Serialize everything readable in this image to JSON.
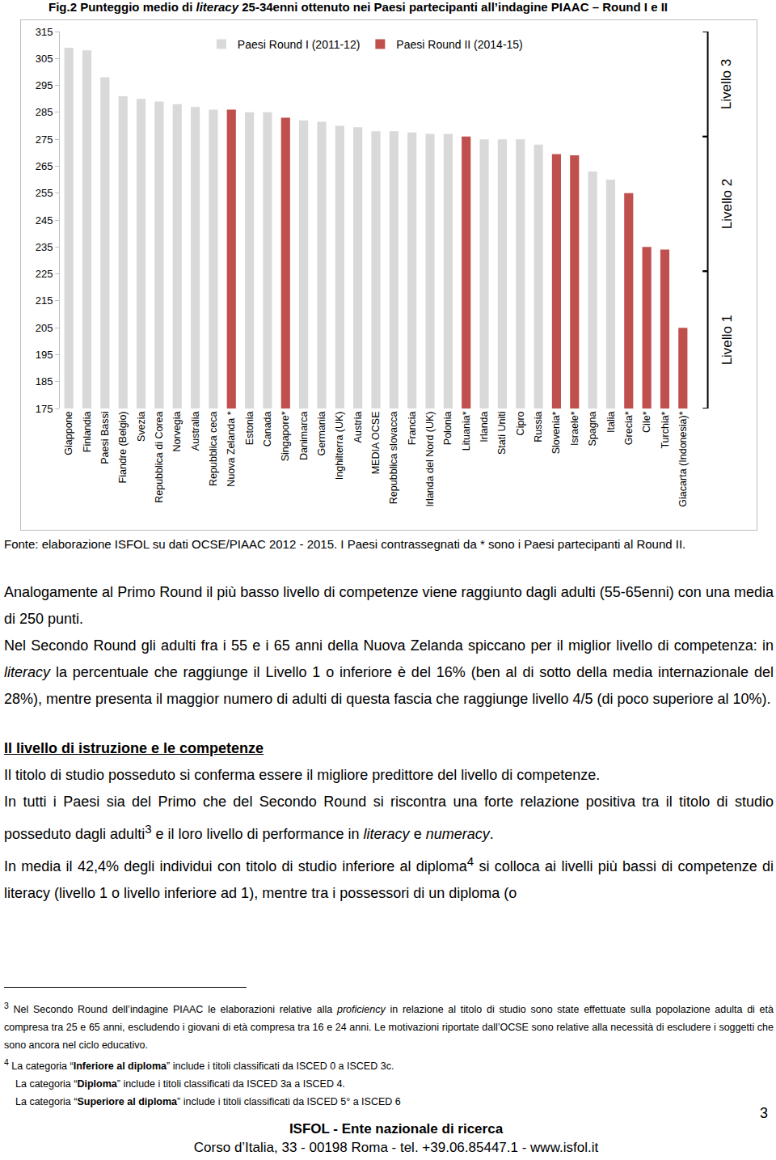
{
  "title": [
    {
      "text": "Fig.2 Punteggio medio di "
    },
    {
      "text": "literacy",
      "style": "italic"
    },
    {
      "text": " 25-34enni ottenuto nei Paesi partecipanti all’indagine PIAAC – Round I e II"
    }
  ],
  "chart_data": {
    "type": "bar",
    "categories": [
      "Giappone",
      "Finlandia",
      "Paesi Bassi",
      "Fiandre (Belgio)",
      "Svezia",
      "Repubblica di Corea",
      "Norvegia",
      "Australia",
      "Repubblica ceca",
      "Nuova Zelanda *",
      "Estonia",
      "Canada",
      "Singapore*",
      "Danimarca",
      "Germania",
      "Inghilterra (UK)",
      "Austria",
      "MEDIA OCSE",
      "Repubblica slovacca",
      "Francia",
      "Irlanda del Nord (UK)",
      "Polonia",
      "Lituania*",
      "Irlanda",
      "Stati Uniti",
      "Cipro",
      "Russia",
      "Slovenia*",
      "Israele*",
      "Spagna",
      "Italia",
      "Grecia*",
      "Cile*",
      "Turchia*",
      "Giacarta (Indonesia)*"
    ],
    "series": [
      {
        "name": "Paesi Round I (2011-12)",
        "color": "#d9d9d9",
        "values": [
          309,
          308,
          298,
          291,
          290,
          289,
          288,
          287,
          286,
          null,
          285,
          285,
          null,
          282,
          281.5,
          280,
          279.5,
          278,
          278,
          277.5,
          277,
          277,
          null,
          275,
          275,
          275,
          273,
          null,
          null,
          263,
          260,
          null,
          null,
          null,
          null
        ]
      },
      {
        "name": "Paesi Round II (2014-15)",
        "color": "#c0504d",
        "values": [
          null,
          null,
          null,
          null,
          null,
          null,
          null,
          null,
          null,
          286,
          null,
          null,
          283,
          null,
          null,
          null,
          null,
          null,
          null,
          null,
          null,
          null,
          276,
          null,
          null,
          null,
          null,
          269.5,
          269,
          null,
          null,
          255,
          235,
          234,
          205
        ]
      }
    ],
    "ylim": [
      175,
      315
    ],
    "yticks": [
      175,
      185,
      195,
      205,
      215,
      225,
      235,
      245,
      255,
      265,
      275,
      285,
      295,
      305,
      315
    ],
    "grid": false,
    "legend": "top",
    "levels": [
      {
        "label": "Livello 3",
        "from": 276,
        "to": 315
      },
      {
        "label": "Livello 2",
        "from": 226,
        "to": 276
      },
      {
        "label": "Livello 1",
        "from": 175,
        "to": 226
      }
    ]
  },
  "source": "Fonte: elaborazione ISFOL su dati  OCSE/PIAAC 2012 - 2015. I Paesi contrassegnati da * sono i Paesi partecipanti al Round II.",
  "body": [
    {
      "type": "p",
      "parts": [
        {
          "text": "Analogamente al Primo Round il più basso livello di competenze viene raggiunto dagli adulti (55-65enni) con una media di 250 punti."
        }
      ]
    },
    {
      "type": "p",
      "parts": [
        {
          "text": "Nel Secondo Round gli adulti fra i 55 e i 65 anni della Nuova Zelanda spiccano per il miglior livello di competenza: in "
        },
        {
          "text": "literacy",
          "style": "italic"
        },
        {
          "text": " la percentuale che raggiunge il Livello 1 o inferiore è del 16%  (ben al di sotto della media internazionale del 28%), mentre presenta il maggior numero di adulti di questa fascia che raggiunge livello 4/5 (di poco superiore al 10%)."
        }
      ]
    },
    {
      "type": "h",
      "parts": [
        {
          "text": "Il livello di istruzione e le competenze",
          "style": "bold-underline"
        }
      ]
    },
    {
      "type": "p",
      "parts": [
        {
          "text": "Il titolo di studio posseduto si conferma essere il migliore predittore del livello di competenze."
        }
      ]
    },
    {
      "type": "p",
      "parts": [
        {
          "text": "In tutti i Paesi sia del Primo che del Secondo Round si riscontra una forte relazione positiva tra il titolo di studio posseduto dagli adulti"
        },
        {
          "text": "3",
          "style": "sup"
        },
        {
          "text": " e il loro livello di performance in "
        },
        {
          "text": "literacy",
          "style": "italic"
        },
        {
          "text": " e "
        },
        {
          "text": "numeracy",
          "style": "italic"
        },
        {
          "text": "."
        }
      ]
    },
    {
      "type": "p",
      "parts": [
        {
          "text": "In media il 42,4% degli individui con titolo di studio inferiore al diploma"
        },
        {
          "text": "4",
          "style": "sup"
        },
        {
          "text": " si colloca ai livelli più bassi di competenze di literacy (livello 1 o livello inferiore ad 1), mentre tra i possessori di un diploma (o"
        }
      ]
    }
  ],
  "footnotes": [
    {
      "parts": [
        {
          "text": "3",
          "style": "sup"
        },
        {
          "text": " Nel Secondo Round dell’indagine PIAAC le elaborazioni relative alla "
        },
        {
          "text": "proficiency",
          "style": "italic"
        },
        {
          "text": " in relazione al titolo di studio sono state effettuate sulla popolazione adulta di età compresa tra 25 e 65 anni, escludendo i giovani di età compresa tra 16 e 24 anni. Le motivazioni riportate dall’OCSE sono relative alla necessità di escludere i soggetti che sono ancora nel ciclo educativo."
        }
      ]
    },
    {
      "parts": [
        {
          "text": "4",
          "style": "sup"
        },
        {
          "text": " La categoria “"
        },
        {
          "text": "Inferiore al diploma",
          "style": "bold"
        },
        {
          "text": "” include i titoli classificati da ISCED 0 a ISCED 3c."
        }
      ]
    },
    {
      "indent": true,
      "parts": [
        {
          "text": "La categoria “"
        },
        {
          "text": "Diploma",
          "style": "bold"
        },
        {
          "text": "” include i titoli classificati da ISCED 3a  a ISCED 4."
        }
      ]
    },
    {
      "indent": true,
      "parts": [
        {
          "text": "La categoria “"
        },
        {
          "text": "Superiore al diploma",
          "style": "bold"
        },
        {
          "text": "” include i titoli classificati da ISCED 5° a ISCED 6"
        }
      ]
    }
  ],
  "page_number": "3",
  "footer": {
    "name": "ISFOL - Ente nazionale di ricerca",
    "address": "Corso d’Italia, 33 - 00198 Roma - tel. +39.06.85447.1 - www.isfol.it"
  }
}
